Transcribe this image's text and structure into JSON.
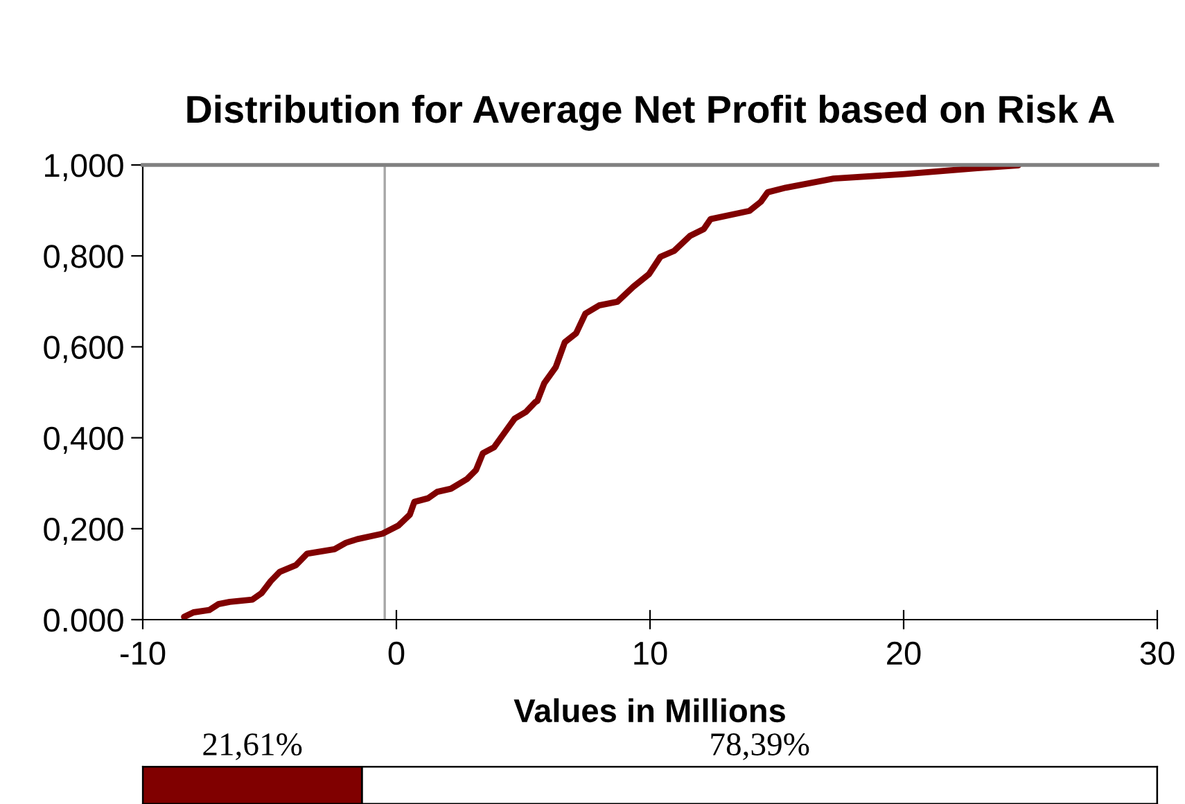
{
  "chart_data": [
    {
      "type": "line",
      "title": "Distribution for Average Net Profit based on Risk A",
      "xlabel": "Values in Millions",
      "xlim": [
        -10,
        30
      ],
      "xticks": [
        -10,
        0,
        10,
        20,
        30
      ],
      "ylim": [
        0,
        1
      ],
      "yticks": [
        {
          "value": 0,
          "label": "0.000"
        },
        {
          "value": 0.2,
          "label": "0,200"
        },
        {
          "value": 0.4,
          "label": "0,400"
        },
        {
          "value": 0.6,
          "label": "0,600"
        },
        {
          "value": 0.8,
          "label": "0,800"
        },
        {
          "value": 1,
          "label": "1,000"
        }
      ],
      "grid": false,
      "legend": false,
      "ref_lines": [
        {
          "axis": "x",
          "value": -0.46,
          "color": "#a6a6a6"
        }
      ],
      "series": [
        {
          "color": "#800000",
          "x": [
            -8.37,
            -8.0,
            -7.38,
            -7.02,
            -6.57,
            -5.68,
            -5.32,
            -4.95,
            -4.6,
            -3.96,
            -3.52,
            -2.44,
            -1.99,
            -1.54,
            -0.55,
            0.08,
            0.53,
            0.71,
            1.25,
            1.61,
            2.15,
            2.78,
            3.14,
            3.41,
            3.85,
            4.21,
            4.66,
            5.11,
            5.47,
            5.56,
            5.83,
            6.28,
            6.64,
            7.09,
            7.45,
            7.99,
            8.71,
            9.34,
            9.96,
            10.41,
            10.95,
            11.58,
            12.12,
            12.39,
            13.92,
            14.37,
            14.64,
            15.35,
            17.24,
            20.03,
            22.9,
            24.52
          ],
          "values": [
            0.006,
            0.016,
            0.021,
            0.034,
            0.039,
            0.044,
            0.058,
            0.085,
            0.105,
            0.12,
            0.145,
            0.155,
            0.169,
            0.177,
            0.189,
            0.207,
            0.231,
            0.259,
            0.267,
            0.281,
            0.288,
            0.309,
            0.329,
            0.366,
            0.379,
            0.407,
            0.442,
            0.457,
            0.478,
            0.481,
            0.52,
            0.555,
            0.61,
            0.63,
            0.673,
            0.691,
            0.699,
            0.732,
            0.76,
            0.798,
            0.811,
            0.844,
            0.859,
            0.881,
            0.899,
            0.919,
            0.94,
            0.95,
            0.97,
            0.98,
            0.993,
            0.999
          ]
        }
      ]
    },
    {
      "type": "bar",
      "orientation": "horizontal",
      "stacked": true,
      "categories": [
        null
      ],
      "xlim": [
        0,
        100
      ],
      "tick_labels": false,
      "series": [
        {
          "color": "#800000",
          "values": [
            21.61
          ],
          "value_labels": [
            "21,61%"
          ]
        },
        {
          "color": "#ffffff",
          "values": [
            78.39
          ],
          "value_labels": [
            "78,39%"
          ]
        }
      ]
    }
  ]
}
